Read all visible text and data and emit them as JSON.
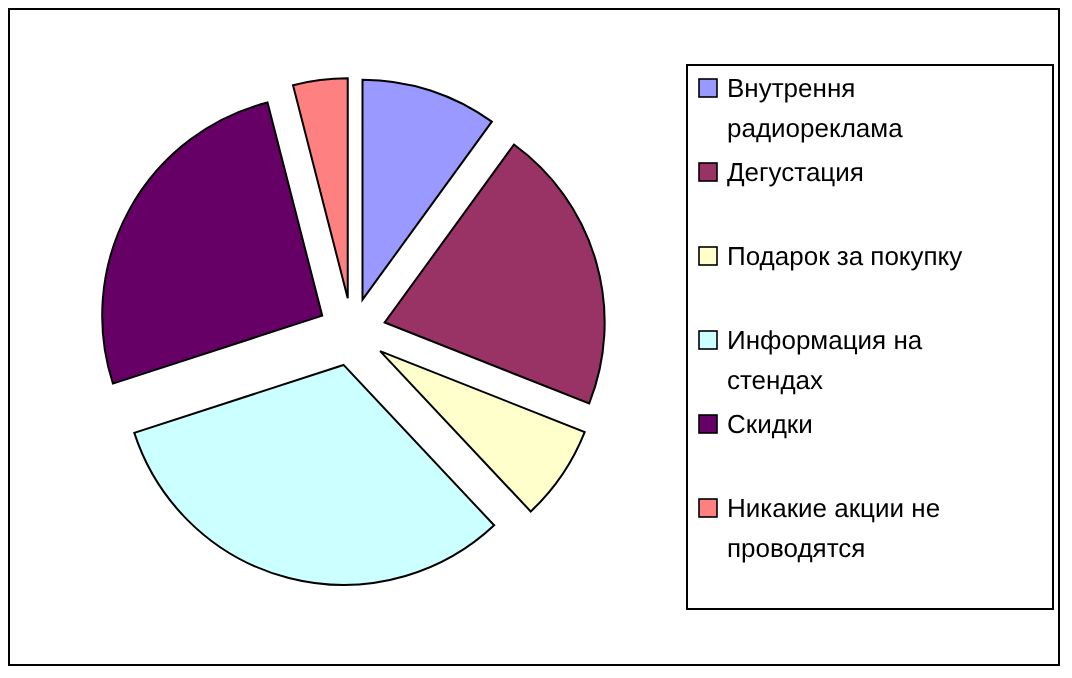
{
  "chart_data": {
    "type": "pie",
    "categories": [
      "Внутрення радиореклама",
      "Дегустация",
      "Подарок за покупку",
      "Информация на стендах",
      "Скидки",
      "Никакие акции не проводятся"
    ],
    "values": [
      10,
      21,
      7,
      32,
      26,
      4
    ],
    "colors": [
      "#9999ff",
      "#993366",
      "#ffffcc",
      "#ccffff",
      "#660066",
      "#ff8080"
    ],
    "legend": "right"
  }
}
